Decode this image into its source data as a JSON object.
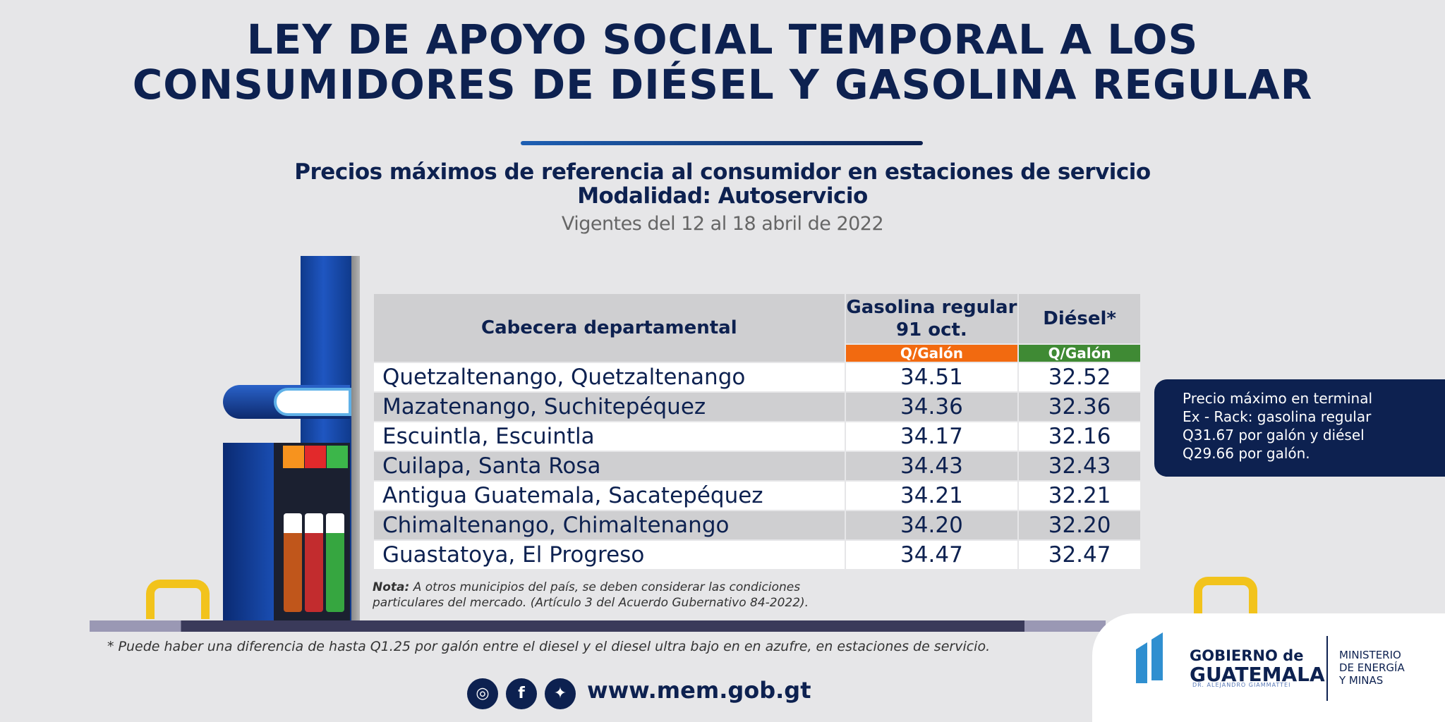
{
  "header": {
    "title_line1": "LEY DE APOYO SOCIAL TEMPORAL A LOS",
    "title_line2": "CONSUMIDORES DE DIÉSEL Y GASOLINA REGULAR",
    "subtitle_line1": "Precios máximos de referencia al consumidor en estaciones de servicio",
    "subtitle_line2": "Modalidad: Autoservicio",
    "validity": "Vigentes del 12 al 18 abril de 2022"
  },
  "table": {
    "col_place": "Cabecera departamental",
    "col_gas": "Gasolina regular 91 oct.",
    "col_diesel": "Diésel*",
    "unit_gas": "Q/Galón",
    "unit_diesel": "Q/Galón",
    "rows": [
      {
        "place": "Quetzaltenango, Quetzaltenango",
        "gas": "34.51",
        "diesel": "32.52"
      },
      {
        "place": "Mazatenango, Suchitepéquez",
        "gas": "34.36",
        "diesel": "32.36"
      },
      {
        "place": "Escuintla, Escuintla",
        "gas": "34.17",
        "diesel": "32.16"
      },
      {
        "place": "Cuilapa, Santa Rosa",
        "gas": "34.43",
        "diesel": "32.43"
      },
      {
        "place": "Antigua Guatemala, Sacatepéquez",
        "gas": "34.21",
        "diesel": "32.21"
      },
      {
        "place": "Chimaltenango, Chimaltenango",
        "gas": "34.20",
        "diesel": "32.20"
      },
      {
        "place": "Guastatoya, El Progreso",
        "gas": "34.47",
        "diesel": "32.47"
      }
    ]
  },
  "note": {
    "label": "Nota:",
    "line1": "A otros municipios del país, se deben considerar las condiciones",
    "line2": "particulares del mercado.  (Artículo 3 del Acuerdo Gubernativo 84-2022)."
  },
  "rack_box": {
    "line1": "Precio máximo en terminal",
    "line2": "Ex - Rack:  gasolina regular",
    "line3": "Q31.67 por galón y diésel",
    "line4": "Q29.66 por galón."
  },
  "footnote": "* Puede haber una diferencia de hasta Q1.25 por galón entre el diesel y el diesel ultra bajo en en azufre, en estaciones de servicio.",
  "footer": {
    "website": "www.mem.gob.gt",
    "gov_line1": "GOBIERNO de",
    "gov_line2": "GUATEMALA",
    "gov_line3": "DR. ALEJANDRO GIAMMATTEI",
    "ministry_line1": "MINISTERIO",
    "ministry_line2": "DE ENERGÍA",
    "ministry_line3": "Y MINAS"
  },
  "colors": {
    "navy": "#0d2150",
    "orange": "#f26a10",
    "green": "#3f8a34"
  }
}
